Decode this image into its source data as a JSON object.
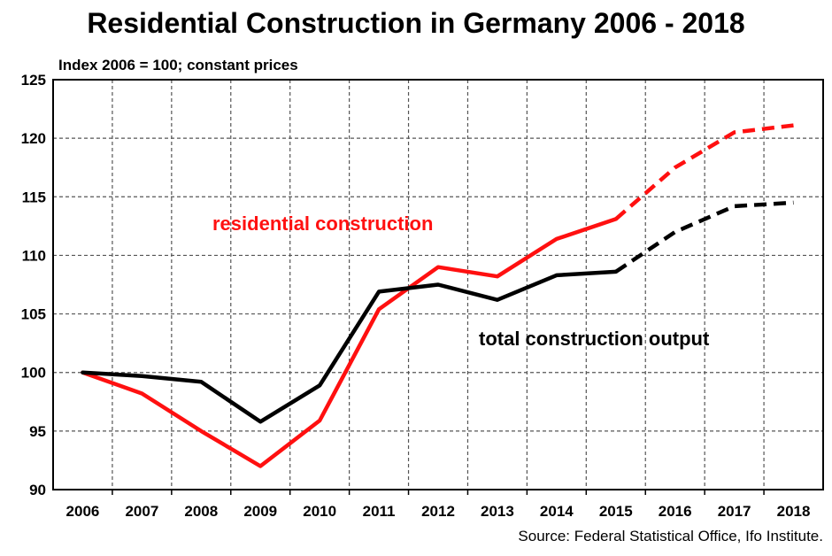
{
  "title": "Residential Construction in Germany 2006 - 2018",
  "subtitle": "Index 2006 = 100; constant prices",
  "source": "Source: Federal Statistical Office, Ifo Institute.",
  "annotations": {
    "residential": "residential construction",
    "total": "total construction output"
  },
  "colors": {
    "residential": "#ff1010",
    "total": "#000000",
    "grid": "#555555"
  },
  "chart_data": {
    "type": "line",
    "title": "Residential Construction in Germany 2006 - 2018",
    "subtitle": "Index 2006 = 100; constant prices",
    "categories": [
      "2006",
      "2007",
      "2008",
      "2009",
      "2010",
      "2011",
      "2012",
      "2013",
      "2014",
      "2015",
      "2016",
      "2017",
      "2018"
    ],
    "ylim": [
      90,
      125
    ],
    "yticks": [
      90,
      95,
      100,
      105,
      110,
      115,
      120,
      125
    ],
    "grid": true,
    "series": [
      {
        "name": "residential construction",
        "color": "#ff1010",
        "values": [
          100,
          98.2,
          95.0,
          92.0,
          95.9,
          105.4,
          109.0,
          108.2,
          111.4,
          113.1,
          117.5,
          120.5,
          121.1
        ],
        "forecast_from": "2015"
      },
      {
        "name": "total construction output",
        "color": "#000000",
        "values": [
          100,
          99.7,
          99.2,
          95.8,
          98.9,
          106.9,
          107.5,
          106.2,
          108.3,
          108.6,
          112.0,
          114.2,
          114.5
        ],
        "forecast_from": "2015"
      }
    ]
  }
}
